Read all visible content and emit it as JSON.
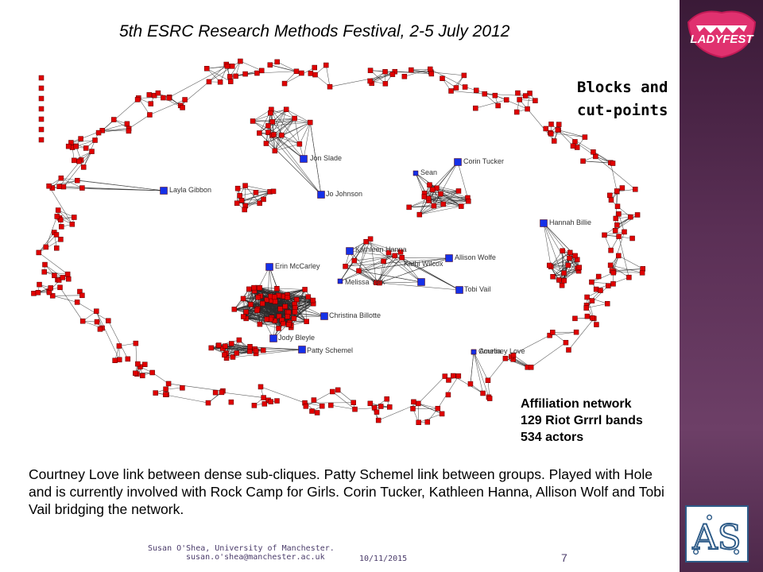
{
  "slide": {
    "title": "5th ESRC Research Methods Festival, 2-5 July 2012",
    "blocks_heading": [
      "Blocks and",
      "cut-points"
    ],
    "network_info": [
      "Affiliation network",
      "129 Riot Grrrl bands",
      "534 actors"
    ],
    "caption": "Courtney Love link between dense sub-cliques. Patty Schemel link between groups. Played with Hole and is currently involved with Rock Camp for Girls. Corin Tucker, Kathleen Hanna, Allison Wolf and Tobi Vail bridging the network.",
    "footer": {
      "author_line1": "Susan O'Shea, University of Manchester.",
      "author_line2": "susan.o'shea@manchester.ac.uk",
      "date": "10/11/2015",
      "page": "7"
    },
    "logo_text": "LADYFEST",
    "badge_letters": "AS"
  },
  "network": {
    "node_color": "#e00000",
    "cutpoint_color": "#1530e8",
    "edge_color": "#2a2a2a",
    "labels": [
      "Jon Slade",
      "Corin Tucker",
      "Sean",
      "Layla Gibbon",
      "Jo Johnson",
      "Hannah Billie",
      "Kathleen Hanna",
      "Allison Wolfe",
      "Kathi Wilcox",
      "Erin McCarley",
      "Melissa York",
      "Tobi Vail",
      "Christina Billotte",
      "Jody Bleyle",
      "Patty Schemel",
      "Courtney Love",
      "Amelia"
    ]
  }
}
